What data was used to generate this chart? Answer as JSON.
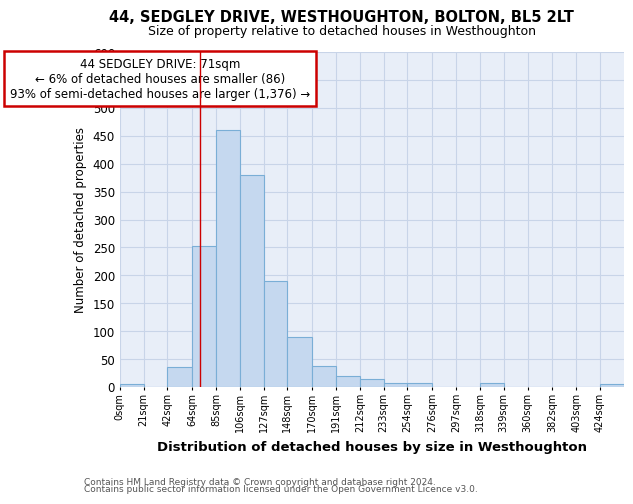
{
  "title": "44, SEDGLEY DRIVE, WESTHOUGHTON, BOLTON, BL5 2LT",
  "subtitle": "Size of property relative to detached houses in Westhoughton",
  "xlabel": "Distribution of detached houses by size in Westhoughton",
  "ylabel": "Number of detached properties",
  "bin_labels": [
    "0sqm",
    "21sqm",
    "42sqm",
    "64sqm",
    "85sqm",
    "106sqm",
    "127sqm",
    "148sqm",
    "170sqm",
    "191sqm",
    "212sqm",
    "233sqm",
    "254sqm",
    "276sqm",
    "297sqm",
    "318sqm",
    "339sqm",
    "360sqm",
    "382sqm",
    "403sqm",
    "424sqm"
  ],
  "bin_edges": [
    0,
    21,
    42,
    64,
    85,
    106,
    127,
    148,
    170,
    191,
    212,
    233,
    254,
    276,
    297,
    318,
    339,
    360,
    382,
    403,
    424,
    445
  ],
  "values": [
    5,
    0,
    35,
    252,
    460,
    380,
    190,
    90,
    38,
    20,
    14,
    8,
    7,
    0,
    0,
    7,
    0,
    0,
    0,
    0,
    5
  ],
  "bar_color": "#c5d8ef",
  "bar_edge_color": "#7aaed6",
  "grid_color": "#c8d4e8",
  "background_color": "#e8eef8",
  "red_line_x": 71,
  "annotation_line1": "44 SEDGLEY DRIVE: 71sqm",
  "annotation_line2": "← 6% of detached houses are smaller (86)",
  "annotation_line3": "93% of semi-detached houses are larger (1,376) →",
  "annotation_box_color": "#ffffff",
  "annotation_box_edge": "#cc0000",
  "ylim": [
    0,
    600
  ],
  "yticks": [
    0,
    50,
    100,
    150,
    200,
    250,
    300,
    350,
    400,
    450,
    500,
    550,
    600
  ],
  "footnote1": "Contains HM Land Registry data © Crown copyright and database right 2024.",
  "footnote2": "Contains public sector information licensed under the Open Government Licence v3.0."
}
